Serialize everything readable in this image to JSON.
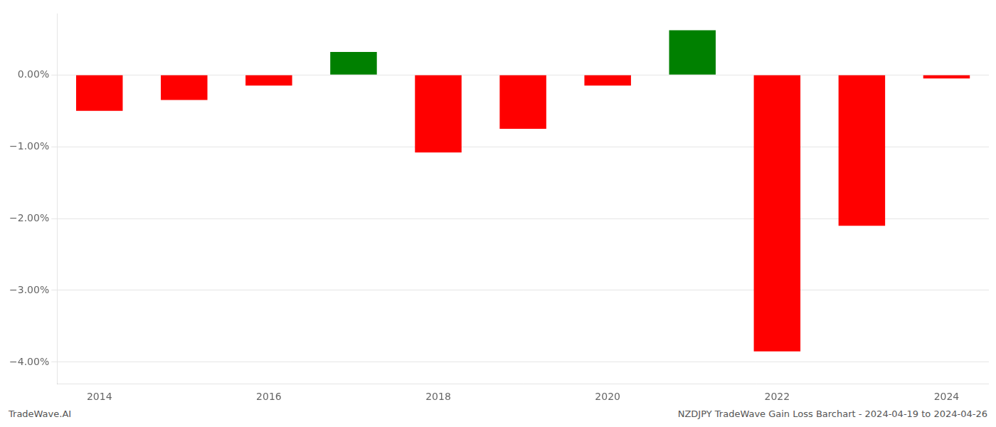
{
  "chart_data": {
    "type": "bar",
    "categories": [
      "2014",
      null,
      "2016",
      null,
      "2018",
      null,
      "2020",
      null,
      "2022",
      null,
      "2024"
    ],
    "values": [
      -0.5,
      -0.35,
      -0.15,
      0.32,
      -1.08,
      -0.75,
      -0.15,
      0.62,
      -3.85,
      -2.1,
      -0.05
    ],
    "colors": [
      "#ff0000",
      "#ff0000",
      "#ff0000",
      "#008000",
      "#ff0000",
      "#ff0000",
      "#ff0000",
      "#008000",
      "#ff0000",
      "#ff0000",
      "#ff0000"
    ],
    "ylim": [
      -4.3,
      0.85
    ],
    "yticks": [
      {
        "value": 0.0,
        "label": "0.00%"
      },
      {
        "value": -1.0,
        "label": "−1.00%"
      },
      {
        "value": -2.0,
        "label": "−2.00%"
      },
      {
        "value": -3.0,
        "label": "−3.00%"
      },
      {
        "value": -4.0,
        "label": "−4.00%"
      }
    ],
    "grid": true,
    "annotations": [
      "TradeWave.AI",
      "NZDJPY TradeWave Gain Loss Barchart - 2024-04-19 to 2024-04-26"
    ]
  }
}
